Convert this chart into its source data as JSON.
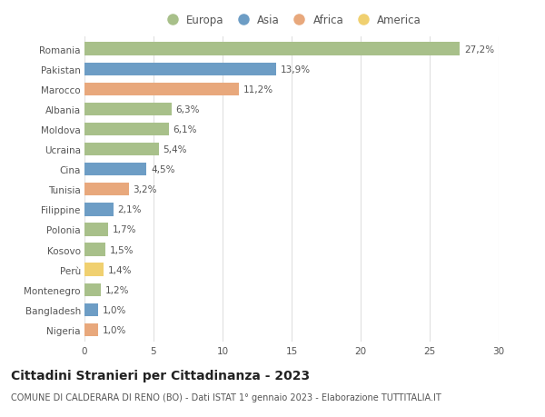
{
  "countries": [
    "Romania",
    "Pakistan",
    "Marocco",
    "Albania",
    "Moldova",
    "Ucraina",
    "Cina",
    "Tunisia",
    "Filippine",
    "Polonia",
    "Kosovo",
    "Perù",
    "Montenegro",
    "Bangladesh",
    "Nigeria"
  ],
  "values": [
    27.2,
    13.9,
    11.2,
    6.3,
    6.1,
    5.4,
    4.5,
    3.2,
    2.1,
    1.7,
    1.5,
    1.4,
    1.2,
    1.0,
    1.0
  ],
  "labels": [
    "27,2%",
    "13,9%",
    "11,2%",
    "6,3%",
    "6,1%",
    "5,4%",
    "4,5%",
    "3,2%",
    "2,1%",
    "1,7%",
    "1,5%",
    "1,4%",
    "1,2%",
    "1,0%",
    "1,0%"
  ],
  "continents": [
    "Europa",
    "Asia",
    "Africa",
    "Europa",
    "Europa",
    "Europa",
    "Asia",
    "Africa",
    "Asia",
    "Europa",
    "Europa",
    "America",
    "Europa",
    "Asia",
    "Africa"
  ],
  "colors": {
    "Europa": "#a8c08a",
    "Asia": "#6d9dc5",
    "Africa": "#e8a87c",
    "America": "#f0d070"
  },
  "legend_order": [
    "Europa",
    "Asia",
    "Africa",
    "America"
  ],
  "title": "Cittadini Stranieri per Cittadinanza - 2023",
  "subtitle": "COMUNE DI CALDERARA DI RENO (BO) - Dati ISTAT 1° gennaio 2023 - Elaborazione TUTTITALIA.IT",
  "xlim": [
    0,
    30
  ],
  "xticks": [
    0,
    5,
    10,
    15,
    20,
    25,
    30
  ],
  "background_color": "#ffffff",
  "grid_color": "#e0e0e0",
  "bar_height": 0.65,
  "label_fontsize": 7.5,
  "tick_fontsize": 7.5,
  "title_fontsize": 10,
  "subtitle_fontsize": 7,
  "legend_fontsize": 8.5
}
